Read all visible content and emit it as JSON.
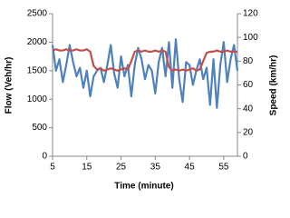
{
  "chart_data": {
    "type": "line",
    "x_label": "Time (minute)",
    "y_label": "Flow (Veh/hr)",
    "y2_label": "Speed (km/hr)",
    "x": [
      5,
      6,
      7,
      8,
      9,
      10,
      11,
      12,
      13,
      14,
      15,
      16,
      17,
      18,
      19,
      20,
      21,
      22,
      23,
      24,
      25,
      26,
      27,
      28,
      29,
      30,
      31,
      32,
      33,
      34,
      35,
      36,
      37,
      38,
      39,
      40,
      41,
      42,
      43,
      44,
      45,
      46,
      47,
      48,
      49,
      50,
      51,
      52,
      53,
      54,
      55,
      56,
      57,
      58,
      59
    ],
    "series": [
      {
        "name": "Flow",
        "color": "#4f81bd",
        "values": [
          1950,
          1500,
          1700,
          1300,
          1600,
          1950,
          1650,
          1400,
          1550,
          1200,
          1500,
          1050,
          1400,
          1500,
          1550,
          1300,
          1600,
          1950,
          1450,
          1200,
          1750,
          1400,
          1600,
          1050,
          1600,
          1900,
          1700,
          1350,
          1600,
          1500,
          1100,
          1650,
          1900,
          1400,
          2000,
          1200,
          2050,
          1350,
          950,
          1650,
          1600,
          1250,
          1500,
          1700,
          1350,
          1550,
          900,
          1700,
          850,
          1600,
          2000,
          1300,
          1700,
          1950,
          1500
        ]
      },
      {
        "name": "Speed",
        "color": "#c0504d",
        "axis": "y2",
        "values": [
          89,
          90,
          89,
          89,
          90,
          89,
          89,
          90,
          89,
          89,
          90,
          88,
          76,
          73,
          74,
          72,
          73,
          74,
          73,
          72,
          73,
          74,
          73,
          80,
          88,
          89,
          88,
          89,
          88,
          88,
          89,
          88,
          89,
          88,
          75,
          72,
          73,
          72,
          73,
          72,
          73,
          74,
          72,
          73,
          80,
          87,
          88,
          88,
          89,
          88,
          88,
          89,
          88,
          88,
          88
        ]
      }
    ],
    "xlim": [
      5,
      59
    ],
    "xticks": [
      5,
      15,
      25,
      35,
      45,
      55
    ],
    "ylim": [
      0,
      2500
    ],
    "yticks": [
      0,
      500,
      1000,
      1500,
      2000,
      2500
    ],
    "y2lim": [
      0,
      120
    ],
    "y2ticks": [
      0,
      20,
      40,
      60,
      80,
      100,
      120
    ]
  }
}
